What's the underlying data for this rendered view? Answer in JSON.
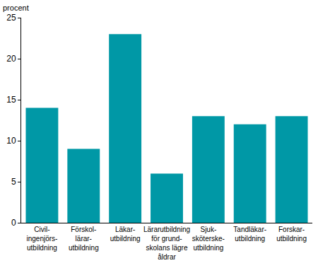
{
  "chart_data": {
    "type": "bar",
    "ylabel": "procent",
    "categories": [
      "Civil-\ningenjörs-\nutbildning",
      "Förskol-\nlärar-\nutbildning",
      "Läkar-\nutbildning",
      "Lärarutbildning\nför grund-\nskolans lägre\nåldrar",
      "Sjuk-\nsköterske-\nutbildning",
      "Tandläkar-\nutbildning",
      "Forskar-\nutbildning"
    ],
    "values": [
      14,
      9,
      23,
      6,
      13,
      12,
      13
    ],
    "color": "#0098a6",
    "ylim": [
      0,
      25
    ],
    "yticks": [
      0,
      5,
      10,
      15,
      20,
      25
    ],
    "grid": false
  }
}
